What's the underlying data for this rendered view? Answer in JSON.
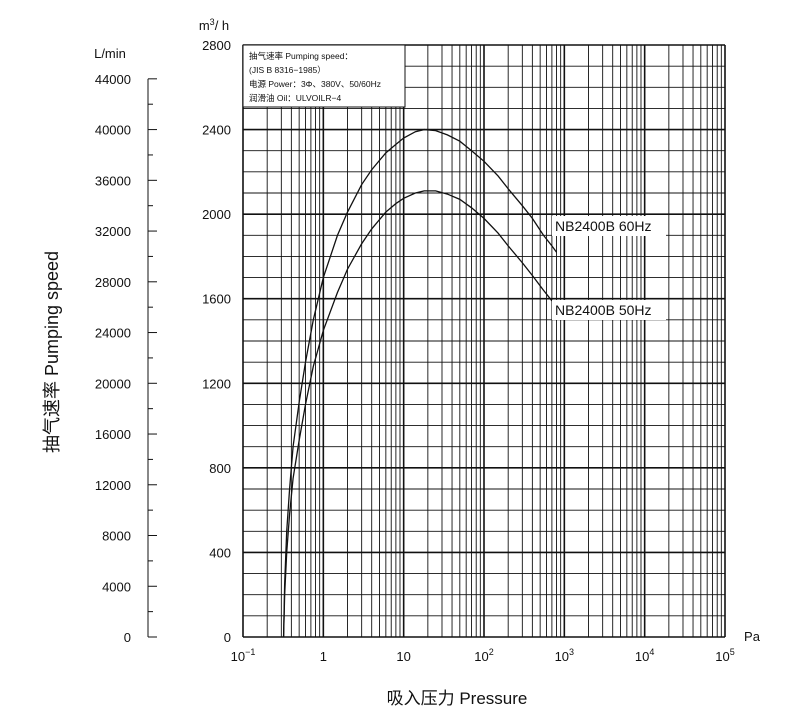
{
  "chart_data": {
    "type": "line",
    "xscale": "log",
    "x_unit": "Pa",
    "x_ticks": [
      0.1,
      1,
      10,
      100,
      1000,
      10000,
      100000
    ],
    "x_tick_labels": [
      {
        "base": "10",
        "exp": "−1"
      },
      {
        "base": "1",
        "exp": ""
      },
      {
        "base": "10",
        "exp": ""
      },
      {
        "base": "10",
        "exp": "2"
      },
      {
        "base": "10",
        "exp": "3"
      },
      {
        "base": "10",
        "exp": "4"
      },
      {
        "base": "10",
        "exp": "5"
      }
    ],
    "xlabel": "吸入压力 Pressure",
    "y_unit": "m³/h",
    "ylim": [
      0,
      2800
    ],
    "y_ticks": [
      0,
      400,
      800,
      1200,
      1600,
      2000,
      2400,
      2800
    ],
    "y2_unit": "L/min",
    "y2lim": [
      0,
      46667
    ],
    "y2_ticks": [
      0,
      4000,
      8000,
      12000,
      16000,
      20000,
      24000,
      28000,
      32000,
      36000,
      40000,
      44000
    ],
    "ylabel": "抽气速率 Pumping speed",
    "info_box": [
      "抽气速率 Pumping speed：",
      "(JIS B 8316−1985）",
      "电源 Power：3Φ、380V、50/60Hz",
      "润滑油 Oil：ULVOILR−4"
    ],
    "grid": true,
    "series": [
      {
        "name": "NB2400B 60Hz",
        "x": [
          0.32,
          0.33,
          0.35,
          0.38,
          0.42,
          0.5,
          0.6,
          0.75,
          1,
          1.5,
          2,
          3,
          4,
          6,
          8,
          10,
          14,
          18,
          25,
          35,
          50,
          70,
          100,
          150,
          200,
          300,
          400,
          550,
          700,
          800
        ],
        "y": [
          0,
          250,
          500,
          700,
          900,
          1110,
          1300,
          1500,
          1700,
          1900,
          2010,
          2140,
          2210,
          2290,
          2330,
          2360,
          2390,
          2400,
          2395,
          2375,
          2345,
          2300,
          2250,
          2180,
          2120,
          2040,
          1980,
          1900,
          1850,
          1820
        ]
      },
      {
        "name": "NB2400B 50Hz",
        "x": [
          0.32,
          0.33,
          0.35,
          0.38,
          0.42,
          0.5,
          0.6,
          0.75,
          1,
          1.5,
          2,
          3,
          4,
          6,
          8,
          10,
          14,
          18,
          25,
          35,
          50,
          70,
          100,
          150,
          200,
          300,
          400,
          550,
          700,
          800
        ],
        "y": [
          0,
          200,
          400,
          580,
          750,
          930,
          1100,
          1280,
          1450,
          1630,
          1740,
          1860,
          1930,
          2010,
          2050,
          2075,
          2100,
          2110,
          2110,
          2095,
          2070,
          2030,
          1980,
          1910,
          1850,
          1770,
          1710,
          1640,
          1590,
          1560
        ]
      }
    ]
  }
}
